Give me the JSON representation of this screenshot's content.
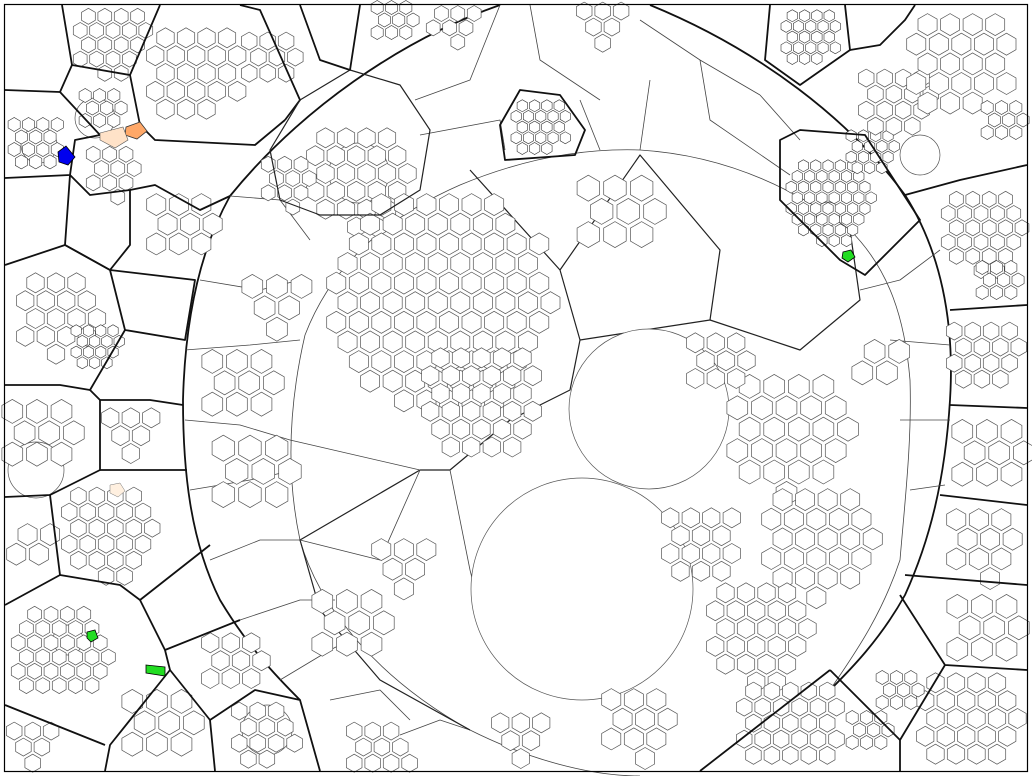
{
  "diagram": {
    "kind": "voronoi-treemap",
    "stroke_color": "#111111",
    "background_color": "#ffffff",
    "highlights": [
      {
        "name": "blue-cell",
        "color": "#0000ee"
      },
      {
        "name": "orange-cell",
        "color": "#ffa868"
      },
      {
        "name": "light-orange-cell",
        "color": "#ffe2c8"
      },
      {
        "name": "green-cell",
        "color": "#22dd22"
      }
    ]
  }
}
